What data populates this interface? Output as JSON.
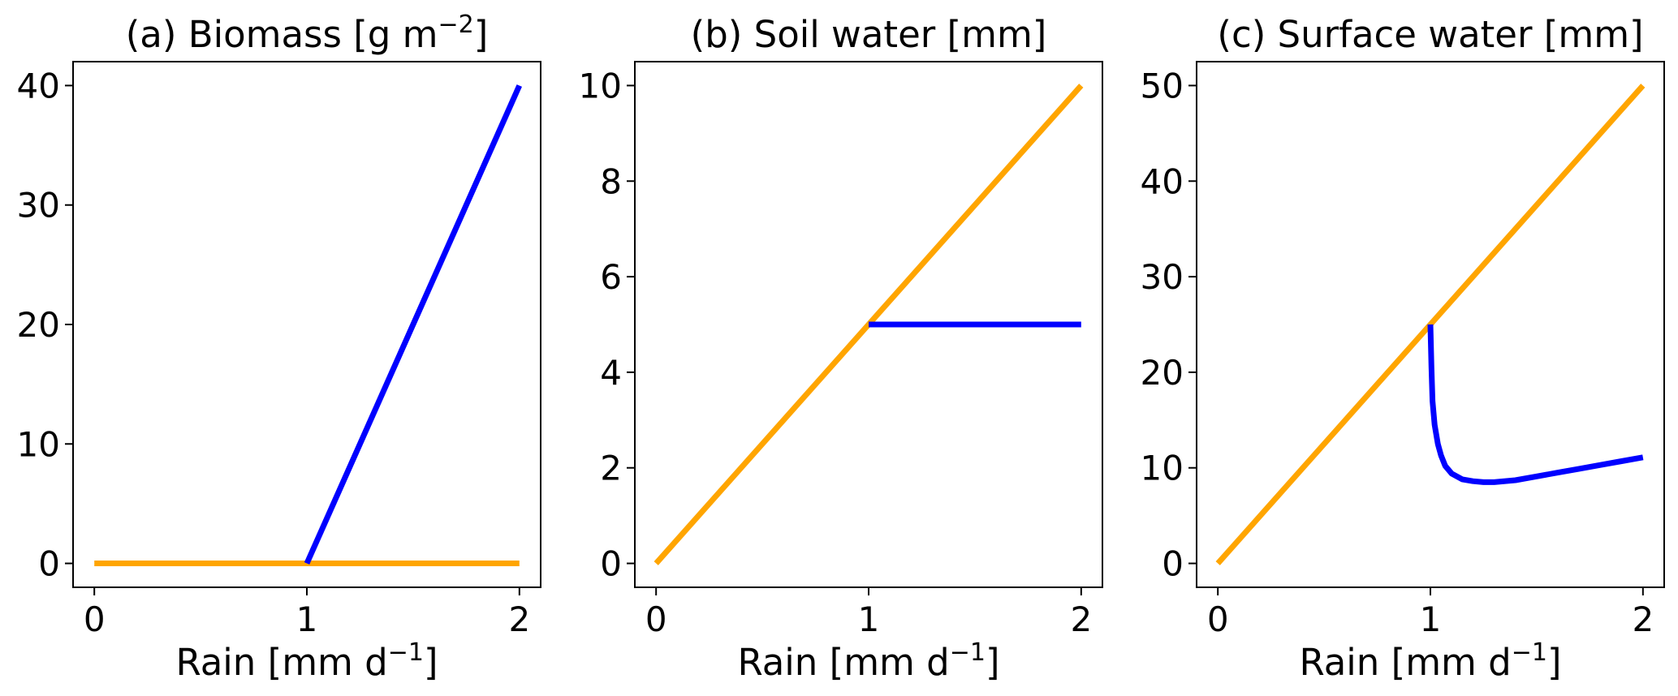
{
  "chart_data": [
    {
      "type": "line",
      "title": "(a) Biomass [g m",
      "title_sup": "−2",
      "title_tail": "]",
      "xlabel": "Rain [mm d",
      "xlabel_sup": "−1",
      "xlabel_tail": "]",
      "ylabel": "",
      "xlim": [
        -0.1,
        2.1
      ],
      "ylim": [
        -2,
        42
      ],
      "xticks": [
        0,
        1,
        2
      ],
      "yticks": [
        0,
        10,
        20,
        30,
        40
      ],
      "grid": false,
      "series": [
        {
          "color": "#ffa500",
          "x": [
            0,
            2
          ],
          "y": [
            0,
            0
          ]
        },
        {
          "color": "#0000ff",
          "x": [
            1,
            2
          ],
          "y": [
            0,
            40
          ]
        }
      ]
    },
    {
      "type": "line",
      "title": "(b) Soil water [mm]",
      "title_sup": "",
      "title_tail": "",
      "xlabel": "Rain [mm d",
      "xlabel_sup": "−1",
      "xlabel_tail": "]",
      "ylabel": "",
      "xlim": [
        -0.1,
        2.1
      ],
      "ylim": [
        -0.5,
        10.5
      ],
      "xticks": [
        0,
        1,
        2
      ],
      "yticks": [
        0,
        2,
        4,
        6,
        8,
        10
      ],
      "grid": false,
      "series": [
        {
          "color": "#ffa500",
          "x": [
            0,
            2
          ],
          "y": [
            0,
            10
          ]
        },
        {
          "color": "#0000ff",
          "x": [
            1,
            2
          ],
          "y": [
            5,
            5
          ]
        }
      ]
    },
    {
      "type": "line",
      "title": "(c) Surface water [mm]",
      "title_sup": "",
      "title_tail": "",
      "xlabel": "Rain [mm d",
      "xlabel_sup": "−1",
      "xlabel_tail": "]",
      "ylabel": "",
      "xlim": [
        -0.1,
        2.1
      ],
      "ylim": [
        -2.5,
        52.5
      ],
      "xticks": [
        0,
        1,
        2
      ],
      "yticks": [
        0,
        10,
        20,
        30,
        40,
        50
      ],
      "grid": false,
      "series": [
        {
          "color": "#ffa500",
          "x": [
            0,
            2
          ],
          "y": [
            0,
            50
          ]
        },
        {
          "color": "#0000ff",
          "x": [
            1.0,
            1.005,
            1.01,
            1.02,
            1.035,
            1.05,
            1.07,
            1.1,
            1.15,
            1.2,
            1.25,
            1.3,
            1.4,
            1.5,
            1.6,
            1.7,
            1.8,
            1.9,
            2.0
          ],
          "y": [
            25.0,
            20.5,
            17.0,
            14.5,
            12.5,
            11.3,
            10.2,
            9.4,
            8.8,
            8.6,
            8.5,
            8.5,
            8.7,
            9.1,
            9.5,
            9.9,
            10.3,
            10.7,
            11.1
          ]
        }
      ]
    }
  ]
}
